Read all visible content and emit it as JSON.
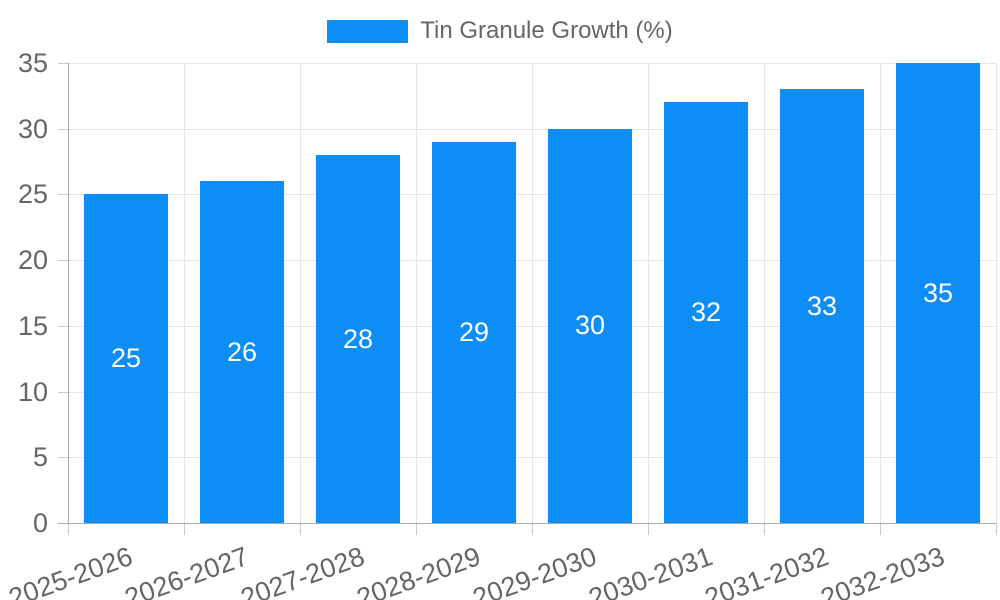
{
  "legend": {
    "label": "Tin Granule Growth (%)",
    "position": "top"
  },
  "chart_data": {
    "type": "bar",
    "title": "",
    "xlabel": "",
    "ylabel": "",
    "categories": [
      "2025-2026",
      "2026-2027",
      "2027-2028",
      "2028-2029",
      "2029-2030",
      "2030-2031",
      "2031-2032",
      "2032-2033"
    ],
    "series": [
      {
        "name": "Tin Granule Growth (%)",
        "values": [
          25,
          26,
          28,
          29,
          30,
          32,
          33,
          35
        ]
      }
    ],
    "value_labels_shown": true,
    "ylim": [
      0,
      35
    ],
    "yticks": [
      0,
      5,
      10,
      15,
      20,
      25,
      30,
      35
    ],
    "grid": true,
    "legend_position": "top",
    "x_label_rotation_deg": -20,
    "colors": {
      "bar": "#0c8ef6",
      "value_label": "#ffffff",
      "tick_label": "#666666",
      "gridline": "#e6e6e6",
      "axis_line": "#a8a8a8",
      "tick_mark": "#cccccc",
      "background": "#ffffff"
    }
  }
}
